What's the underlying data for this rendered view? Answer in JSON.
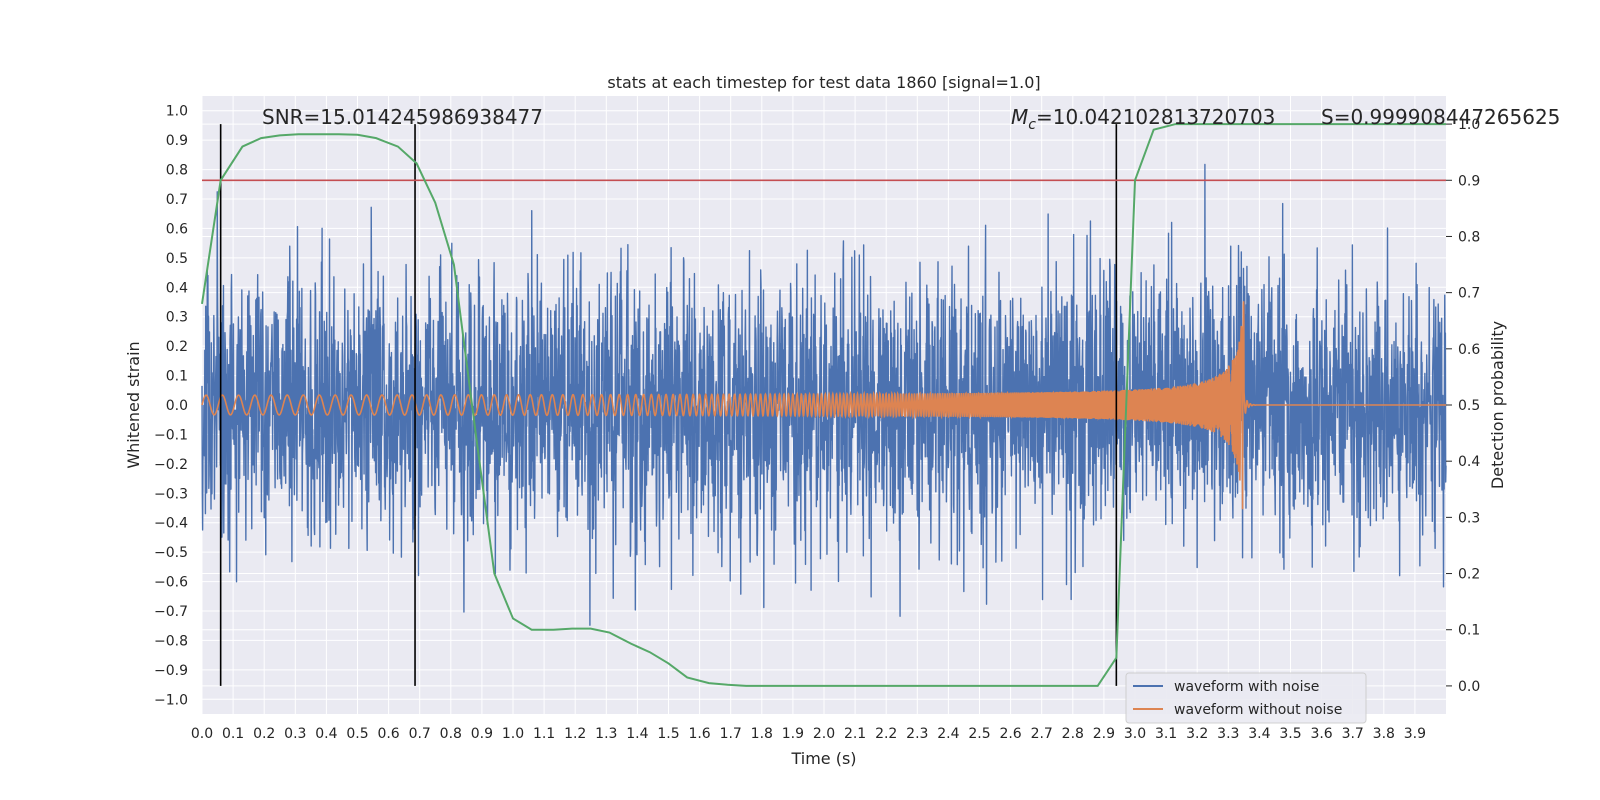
{
  "chart_data": {
    "type": "line",
    "title": "stats at each timestep for test data 1860 [signal=1.0]",
    "xlabel": "Time (s)",
    "ylabel": "Whitened strain",
    "y2label": "Detection probability",
    "xlim": [
      0.0,
      4.0
    ],
    "ylim": [
      -1.05,
      1.05
    ],
    "y2lim": [
      -0.05,
      1.05
    ],
    "x_ticks": [
      0.0,
      0.1,
      0.2,
      0.3,
      0.4,
      0.5,
      0.6,
      0.7,
      0.8,
      0.9,
      1.0,
      1.1,
      1.2,
      1.3,
      1.4,
      1.5,
      1.6,
      1.7,
      1.8,
      1.9,
      2.0,
      2.1,
      2.2,
      2.3,
      2.4,
      2.5,
      2.6,
      2.7,
      2.8,
      2.9,
      3.0,
      3.1,
      3.2,
      3.3,
      3.4,
      3.5,
      3.6,
      3.7,
      3.8,
      3.9
    ],
    "x_tick_labels": [
      "0.0",
      "0.1",
      "0.2",
      "0.3",
      "0.4",
      "0.5",
      "0.6",
      "0.7",
      "0.8",
      "0.9",
      "1.0",
      "1.1",
      "1.2",
      "1.3",
      "1.4",
      "1.5",
      "1.6",
      "1.7",
      "1.8",
      "1.9",
      "2.0",
      "2.1",
      "2.2",
      "2.3",
      "2.4",
      "2.5",
      "2.6",
      "2.7",
      "2.8",
      "2.9",
      "3.0",
      "3.1",
      "3.2",
      "3.3",
      "3.4",
      "3.5",
      "3.6",
      "3.7",
      "3.8",
      "3.9"
    ],
    "y_ticks": [
      -1.0,
      -0.9,
      -0.8,
      -0.7,
      -0.6,
      -0.5,
      -0.4,
      -0.3,
      -0.2,
      -0.1,
      0.0,
      0.1,
      0.2,
      0.3,
      0.4,
      0.5,
      0.6,
      0.7,
      0.8,
      0.9,
      1.0
    ],
    "y_tick_labels": [
      "−1.0",
      "−0.9",
      "−0.8",
      "−0.7",
      "−0.6",
      "−0.5",
      "−0.4",
      "−0.3",
      "−0.2",
      "−0.1",
      "0.0",
      "0.1",
      "0.2",
      "0.3",
      "0.4",
      "0.5",
      "0.6",
      "0.7",
      "0.8",
      "0.9",
      "1.0"
    ],
    "y2_ticks": [
      0.0,
      0.1,
      0.2,
      0.3,
      0.4,
      0.5,
      0.6,
      0.7,
      0.8,
      0.9,
      1.0
    ],
    "y2_tick_labels": [
      "0.0",
      "0.1",
      "0.2",
      "0.3",
      "0.4",
      "0.5",
      "0.6",
      "0.7",
      "0.8",
      "0.9",
      "1.0"
    ],
    "annotations": {
      "snr": "SNR=15.014245986938477",
      "mc_symbol": "M",
      "mc_sub": "c",
      "mc_value": "=10.042102813720703",
      "s_value": "S=0.999908447265625"
    },
    "vertical_markers_x": [
      0.06,
      0.685,
      2.94
    ],
    "threshold_y2": 0.9,
    "series": [
      {
        "name": "waveform with noise",
        "color": "#4c72b0",
        "axis": "left",
        "noise_std": 0.22,
        "seed": 1860
      },
      {
        "name": "waveform without noise",
        "color": "#dd8452",
        "axis": "left",
        "merger_time": 3.35,
        "start_amplitude": 0.03,
        "peak_amplitude": 0.45,
        "start_freq_hz": 19,
        "end_freq_hz": 95
      },
      {
        "name": "detection probability",
        "color": "#55a868",
        "axis": "right",
        "x": [
          0.0,
          0.06,
          0.13,
          0.19,
          0.25,
          0.31,
          0.38,
          0.44,
          0.5,
          0.56,
          0.63,
          0.69,
          0.75,
          0.81,
          0.88,
          0.94,
          1.0,
          1.06,
          1.13,
          1.19,
          1.25,
          1.31,
          1.38,
          1.44,
          1.5,
          1.56,
          1.63,
          1.69,
          1.75,
          2.0,
          2.5,
          2.8,
          2.88,
          2.94,
          3.0,
          3.06,
          3.13,
          3.19,
          3.25,
          3.5,
          3.75,
          4.0
        ],
        "values": [
          0.68,
          0.9,
          0.96,
          0.975,
          0.98,
          0.982,
          0.982,
          0.982,
          0.981,
          0.975,
          0.96,
          0.93,
          0.86,
          0.75,
          0.45,
          0.2,
          0.12,
          0.1,
          0.1,
          0.102,
          0.102,
          0.095,
          0.075,
          0.06,
          0.04,
          0.015,
          0.005,
          0.002,
          0.0,
          0.0,
          0.0,
          0.0,
          0.0,
          0.05,
          0.9,
          0.99,
          1.0,
          1.0,
          1.0,
          1.0,
          1.0,
          1.0
        ]
      }
    ],
    "legend": {
      "position": "bottom-right",
      "entries": [
        "waveform with noise",
        "waveform without noise"
      ]
    }
  }
}
